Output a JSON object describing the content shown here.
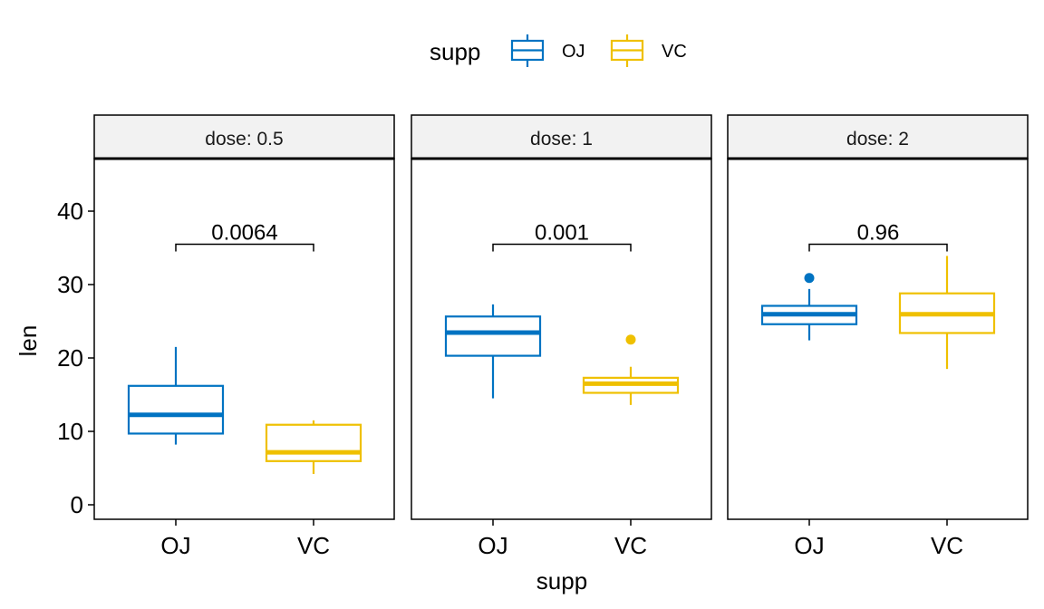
{
  "chart_data": {
    "type": "box",
    "title": "",
    "xlabel": "supp",
    "ylabel": "len",
    "ylim": [
      -2,
      48
    ],
    "yticks": [
      0,
      10,
      20,
      30,
      40
    ],
    "grid": false,
    "legend": {
      "title": "supp",
      "placement": "top",
      "entries": [
        {
          "name": "OJ",
          "color": "#0073C2"
        },
        {
          "name": "VC",
          "color": "#EFC000"
        }
      ]
    },
    "categories": [
      "OJ",
      "VC"
    ],
    "panels": [
      {
        "label": "dose: 0.5",
        "pvalue": "0.0064",
        "bracket_y": 35.5,
        "boxes": [
          {
            "group": "OJ",
            "min": 8.2,
            "q1": 9.7,
            "median": 12.25,
            "q3": 16.2,
            "max": 21.5,
            "outliers": []
          },
          {
            "group": "VC",
            "min": 4.2,
            "q1": 5.95,
            "median": 7.15,
            "q3": 10.9,
            "max": 11.5,
            "outliers": []
          }
        ]
      },
      {
        "label": "dose: 1",
        "pvalue": "0.001",
        "bracket_y": 35.5,
        "boxes": [
          {
            "group": "OJ",
            "min": 14.5,
            "q1": 20.3,
            "median": 23.45,
            "q3": 25.65,
            "max": 27.3,
            "outliers": []
          },
          {
            "group": "VC",
            "min": 13.6,
            "q1": 15.25,
            "median": 16.5,
            "q3": 17.3,
            "max": 18.8,
            "outliers": [
              22.5
            ]
          }
        ]
      },
      {
        "label": "dose: 2",
        "pvalue": "0.96",
        "bracket_y": 35.5,
        "boxes": [
          {
            "group": "OJ",
            "min": 22.4,
            "q1": 24.6,
            "median": 25.95,
            "q3": 27.1,
            "max": 29.4,
            "outliers": [
              30.9
            ]
          },
          {
            "group": "VC",
            "min": 18.5,
            "q1": 23.4,
            "median": 25.95,
            "q3": 28.8,
            "max": 33.9,
            "outliers": []
          }
        ]
      }
    ]
  }
}
